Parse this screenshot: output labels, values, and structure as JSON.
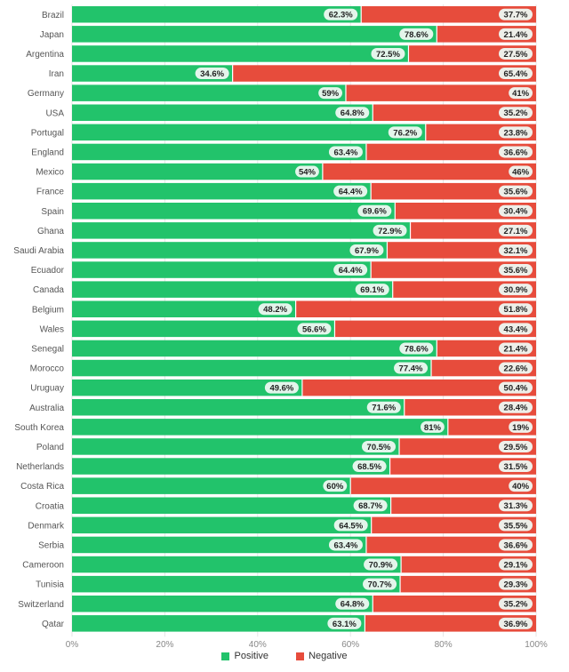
{
  "chart_data": {
    "type": "bar",
    "orientation": "horizontal",
    "stacked": true,
    "categories": [
      "Brazil",
      "Japan",
      "Argentina",
      "Iran",
      "Germany",
      "USA",
      "Portugal",
      "England",
      "Mexico",
      "France",
      "Spain",
      "Ghana",
      "Saudi Arabia",
      "Ecuador",
      "Canada",
      "Belgium",
      "Wales",
      "Senegal",
      "Morocco",
      "Uruguay",
      "Australia",
      "South Korea",
      "Poland",
      "Netherlands",
      "Costa Rica",
      "Croatia",
      "Denmark",
      "Serbia",
      "Cameroon",
      "Tunisia",
      "Switzerland",
      "Qatar"
    ],
    "series": [
      {
        "name": "Positive",
        "color": "#22c36b",
        "values": [
          62.3,
          78.6,
          72.5,
          34.6,
          59,
          64.8,
          76.2,
          63.4,
          54,
          64.4,
          69.6,
          72.9,
          67.9,
          64.4,
          69.1,
          48.2,
          56.6,
          78.6,
          77.4,
          49.6,
          71.6,
          81,
          70.5,
          68.5,
          60,
          68.7,
          64.5,
          63.4,
          70.9,
          70.7,
          64.8,
          63.1
        ]
      },
      {
        "name": "Negative",
        "color": "#e74c3c",
        "values": [
          37.7,
          21.4,
          27.5,
          65.4,
          41,
          35.2,
          23.8,
          36.6,
          46,
          35.6,
          30.4,
          27.1,
          32.1,
          35.6,
          30.9,
          51.8,
          43.4,
          21.4,
          22.6,
          50.4,
          28.4,
          19,
          29.5,
          31.5,
          40,
          31.3,
          35.5,
          36.6,
          29.1,
          29.3,
          35.2,
          36.9
        ]
      }
    ],
    "xlim": [
      0,
      100
    ],
    "x_ticks": [
      "0%",
      "20%",
      "40%",
      "60%",
      "80%",
      "100%"
    ],
    "value_suffix": "%",
    "legend_position": "bottom-center",
    "grid": true
  }
}
